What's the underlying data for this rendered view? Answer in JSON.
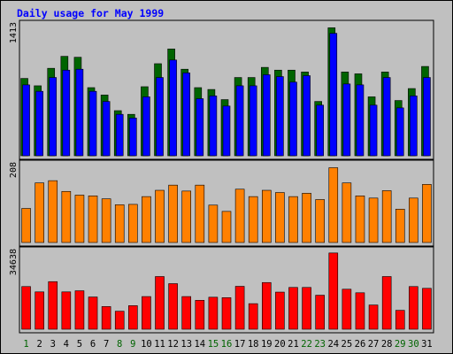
{
  "title": "Daily usage for May 1999",
  "chart_data": {
    "type": "bar",
    "title": "Daily usage for May 1999",
    "x": [
      "1",
      "2",
      "3",
      "4",
      "5",
      "6",
      "7",
      "8",
      "9",
      "10",
      "11",
      "12",
      "13",
      "14",
      "15",
      "16",
      "17",
      "18",
      "19",
      "20",
      "21",
      "22",
      "23",
      "24",
      "25",
      "26",
      "27",
      "28",
      "29",
      "30",
      "31"
    ],
    "weekend_days": [
      "1",
      "8",
      "9",
      "15",
      "16",
      "22",
      "23",
      "29",
      "30"
    ],
    "colors": {
      "hits": "#006400",
      "files": "#0000ff",
      "pages": "#ff8000",
      "kbytes": "#ff0000",
      "weekday_label": "#000000",
      "weekend_label": "#006400"
    },
    "panels": [
      {
        "name": "hits-files",
        "ylabel": "1413",
        "ylim": [
          0,
          1413
        ],
        "series": [
          {
            "key": "hits",
            "values": [
              840,
              760,
              950,
              1080,
              1070,
              740,
              660,
              490,
              450,
              750,
              1000,
              1160,
              940,
              740,
              720,
              610,
              850,
              850,
              960,
              930,
              930,
              910,
              590,
              1390,
              910,
              890,
              640,
              910,
              600,
              730,
              970
            ]
          },
          {
            "key": "files",
            "values": [
              770,
              700,
              850,
              930,
              940,
              700,
              590,
              450,
              410,
              640,
              850,
              1040,
              900,
              620,
              650,
              540,
              760,
              760,
              880,
              860,
              800,
              870,
              550,
              1330,
              780,
              770,
              550,
              850,
              520,
              650,
              850
            ]
          }
        ]
      },
      {
        "name": "pages",
        "ylabel": "208",
        "ylim": [
          0,
          208
        ],
        "series": [
          {
            "key": "pages",
            "values": [
              92,
              161,
              167,
              138,
              128,
              126,
              118,
              102,
              103,
              124,
              141,
              155,
              139,
              155,
              101,
              84,
              144,
              124,
              141,
              135,
              124,
              133,
              116,
              202,
              161,
              126,
              120,
              140,
              90,
              120,
              157
            ]
          }
        ]
      },
      {
        "name": "kbytes",
        "ylabel": "34638",
        "ylim": [
          0,
          34638
        ],
        "series": [
          {
            "key": "kbytes",
            "values": [
              19200,
              16800,
              21400,
              16800,
              17300,
              14500,
              10200,
              8100,
              10600,
              14700,
              23700,
              20500,
              14700,
              13000,
              14400,
              14200,
              19300,
              11500,
              21000,
              16700,
              18800,
              18800,
              15300,
              34300,
              18000,
              16400,
              10900,
              23700,
              8500,
              19200,
              18400
            ]
          }
        ]
      }
    ]
  }
}
